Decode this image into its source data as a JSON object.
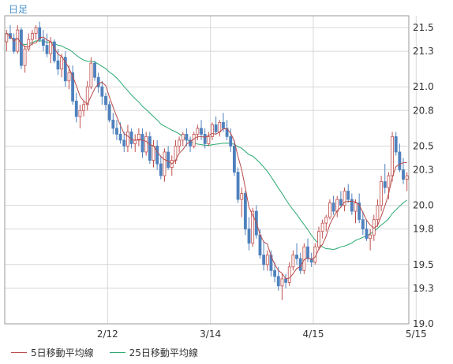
{
  "period_label": "日足",
  "colors": {
    "accent": "#4a90c8",
    "up": "#ffffff",
    "up_border": "#c0504d",
    "down": "#4f81bd",
    "ma5": "#b84a4a",
    "ma25": "#2aa870",
    "grid": "#d8d8d8",
    "frame": "#9a9a9a"
  },
  "chart_data": {
    "type": "candlestick",
    "title": "",
    "xlabel": "",
    "ylabel": "",
    "ylim": [
      19.0,
      21.6
    ],
    "yticks": [
      "21.5",
      "21.3",
      "21.0",
      "20.8",
      "20.5",
      "20.3",
      "20.0",
      "19.8",
      "19.5",
      "19.3",
      "19.0"
    ],
    "xticks": [
      {
        "label": "2/12",
        "index": 28
      },
      {
        "label": "3/14",
        "index": 56
      },
      {
        "label": "4/15",
        "index": 84
      },
      {
        "label": "5/15",
        "index": 112
      }
    ],
    "candles": [
      [
        21.38,
        21.48,
        21.3,
        21.45
      ],
      [
        21.45,
        21.52,
        21.4,
        21.41
      ],
      [
        21.41,
        21.45,
        21.28,
        21.3
      ],
      [
        21.3,
        21.52,
        21.28,
        21.48
      ],
      [
        21.48,
        21.5,
        21.15,
        21.18
      ],
      [
        21.18,
        21.35,
        21.12,
        21.32
      ],
      [
        21.32,
        21.45,
        21.3,
        21.4
      ],
      [
        21.4,
        21.48,
        21.35,
        21.45
      ],
      [
        21.45,
        21.52,
        21.4,
        21.5
      ],
      [
        21.5,
        21.55,
        21.38,
        21.4
      ],
      [
        21.4,
        21.48,
        21.3,
        21.35
      ],
      [
        21.35,
        21.45,
        21.25,
        21.28
      ],
      [
        21.28,
        21.42,
        21.2,
        21.38
      ],
      [
        21.38,
        21.4,
        21.2,
        21.22
      ],
      [
        21.22,
        21.32,
        21.1,
        21.15
      ],
      [
        21.15,
        21.28,
        21.08,
        21.25
      ],
      [
        21.25,
        21.3,
        21.0,
        21.05
      ],
      [
        21.05,
        21.18,
        20.98,
        21.12
      ],
      [
        21.12,
        21.18,
        20.85,
        20.88
      ],
      [
        20.88,
        20.95,
        20.7,
        20.75
      ],
      [
        20.75,
        20.85,
        20.65,
        20.8
      ],
      [
        20.8,
        20.88,
        20.75,
        20.85
      ],
      [
        20.85,
        21.05,
        20.8,
        21.0
      ],
      [
        21.0,
        21.25,
        20.98,
        21.2
      ],
      [
        21.2,
        21.22,
        21.05,
        21.08
      ],
      [
        21.08,
        21.12,
        20.95,
        21.0
      ],
      [
        21.0,
        21.05,
        20.85,
        20.92
      ],
      [
        20.92,
        20.95,
        20.8,
        20.85
      ],
      [
        20.85,
        20.88,
        20.7,
        20.72
      ],
      [
        20.72,
        20.78,
        20.6,
        20.65
      ],
      [
        20.65,
        20.72,
        20.55,
        20.6
      ],
      [
        20.6,
        20.7,
        20.52,
        20.55
      ],
      [
        20.55,
        20.62,
        20.45,
        20.5
      ],
      [
        20.5,
        20.68,
        20.45,
        20.62
      ],
      [
        20.62,
        20.65,
        20.48,
        20.52
      ],
      [
        20.52,
        20.6,
        20.45,
        20.55
      ],
      [
        20.55,
        20.65,
        20.5,
        20.6
      ],
      [
        20.6,
        20.65,
        20.4,
        20.45
      ],
      [
        20.45,
        20.62,
        20.42,
        20.58
      ],
      [
        20.58,
        20.62,
        20.35,
        20.38
      ],
      [
        20.38,
        20.55,
        20.32,
        20.5
      ],
      [
        20.5,
        20.55,
        20.3,
        20.35
      ],
      [
        20.35,
        20.42,
        20.22,
        20.25
      ],
      [
        20.25,
        20.48,
        20.2,
        20.45
      ],
      [
        20.45,
        20.5,
        20.3,
        20.32
      ],
      [
        20.32,
        20.42,
        20.25,
        20.38
      ],
      [
        20.38,
        20.55,
        20.35,
        20.5
      ],
      [
        20.5,
        20.58,
        20.45,
        20.55
      ],
      [
        20.55,
        20.62,
        20.5,
        20.6
      ],
      [
        20.6,
        20.65,
        20.5,
        20.55
      ],
      [
        20.55,
        20.58,
        20.45,
        20.5
      ],
      [
        20.5,
        20.62,
        20.48,
        20.6
      ],
      [
        20.6,
        20.68,
        20.55,
        20.65
      ],
      [
        20.65,
        20.72,
        20.55,
        20.6
      ],
      [
        20.6,
        20.65,
        20.48,
        20.52
      ],
      [
        20.52,
        20.62,
        20.5,
        20.58
      ],
      [
        20.58,
        20.7,
        20.55,
        20.68
      ],
      [
        20.68,
        20.75,
        20.6,
        20.62
      ],
      [
        20.62,
        20.72,
        20.58,
        20.7
      ],
      [
        20.7,
        20.78,
        20.62,
        20.65
      ],
      [
        20.65,
        20.72,
        20.55,
        20.58
      ],
      [
        20.58,
        20.65,
        20.45,
        20.5
      ],
      [
        20.5,
        20.55,
        20.25,
        20.28
      ],
      [
        20.28,
        20.32,
        20.02,
        20.05
      ],
      [
        20.05,
        20.15,
        19.9,
        20.1
      ],
      [
        20.1,
        20.12,
        19.75,
        19.8
      ],
      [
        19.8,
        19.9,
        19.62,
        19.68
      ],
      [
        19.68,
        19.98,
        19.65,
        19.95
      ],
      [
        19.95,
        20.0,
        19.72,
        19.75
      ],
      [
        19.75,
        19.8,
        19.55,
        19.58
      ],
      [
        19.58,
        19.7,
        19.45,
        19.5
      ],
      [
        19.5,
        19.62,
        19.45,
        19.58
      ],
      [
        19.58,
        19.62,
        19.4,
        19.45
      ],
      [
        19.45,
        19.52,
        19.35,
        19.4
      ],
      [
        19.4,
        19.48,
        19.28,
        19.32
      ],
      [
        19.32,
        19.42,
        19.2,
        19.38
      ],
      [
        19.38,
        19.42,
        19.3,
        19.35
      ],
      [
        19.35,
        19.52,
        19.32,
        19.48
      ],
      [
        19.48,
        19.62,
        19.45,
        19.58
      ],
      [
        19.58,
        19.68,
        19.5,
        19.55
      ],
      [
        19.55,
        19.6,
        19.42,
        19.45
      ],
      [
        19.45,
        19.68,
        19.42,
        19.65
      ],
      [
        19.65,
        19.72,
        19.52,
        19.55
      ],
      [
        19.55,
        19.6,
        19.48,
        19.52
      ],
      [
        19.52,
        19.68,
        19.5,
        19.65
      ],
      [
        19.65,
        19.82,
        19.62,
        19.78
      ],
      [
        19.78,
        19.88,
        19.72,
        19.85
      ],
      [
        19.85,
        19.92,
        19.78,
        19.9
      ],
      [
        19.9,
        20.05,
        19.88,
        20.02
      ],
      [
        20.02,
        20.08,
        19.92,
        19.95
      ],
      [
        19.95,
        20.08,
        19.9,
        20.05
      ],
      [
        20.05,
        20.12,
        19.98,
        20.0
      ],
      [
        20.0,
        20.15,
        19.95,
        20.12
      ],
      [
        20.12,
        20.18,
        20.02,
        20.05
      ],
      [
        20.05,
        20.1,
        19.92,
        19.95
      ],
      [
        19.95,
        20.05,
        19.85,
        20.02
      ],
      [
        20.02,
        20.1,
        19.85,
        19.88
      ],
      [
        19.88,
        19.95,
        19.75,
        19.8
      ],
      [
        19.8,
        19.88,
        19.7,
        19.72
      ],
      [
        19.72,
        19.8,
        19.62,
        19.75
      ],
      [
        19.75,
        19.92,
        19.7,
        19.88
      ],
      [
        19.88,
        20.05,
        19.82,
        20.0
      ],
      [
        20.0,
        20.25,
        19.95,
        20.2
      ],
      [
        20.2,
        20.35,
        20.1,
        20.15
      ],
      [
        20.15,
        20.28,
        20.05,
        20.25
      ],
      [
        20.25,
        20.62,
        20.2,
        20.58
      ],
      [
        20.58,
        20.62,
        20.42,
        20.45
      ],
      [
        20.45,
        20.52,
        20.28,
        20.3
      ],
      [
        20.3,
        20.4,
        20.18,
        20.22
      ],
      [
        20.22,
        20.28,
        20.12,
        20.25
      ]
    ],
    "series": [
      {
        "name": "5日移動平均線",
        "color": "#b84a4a",
        "values": []
      },
      {
        "name": "25日移動平均線",
        "color": "#2aa870",
        "values": []
      }
    ]
  }
}
